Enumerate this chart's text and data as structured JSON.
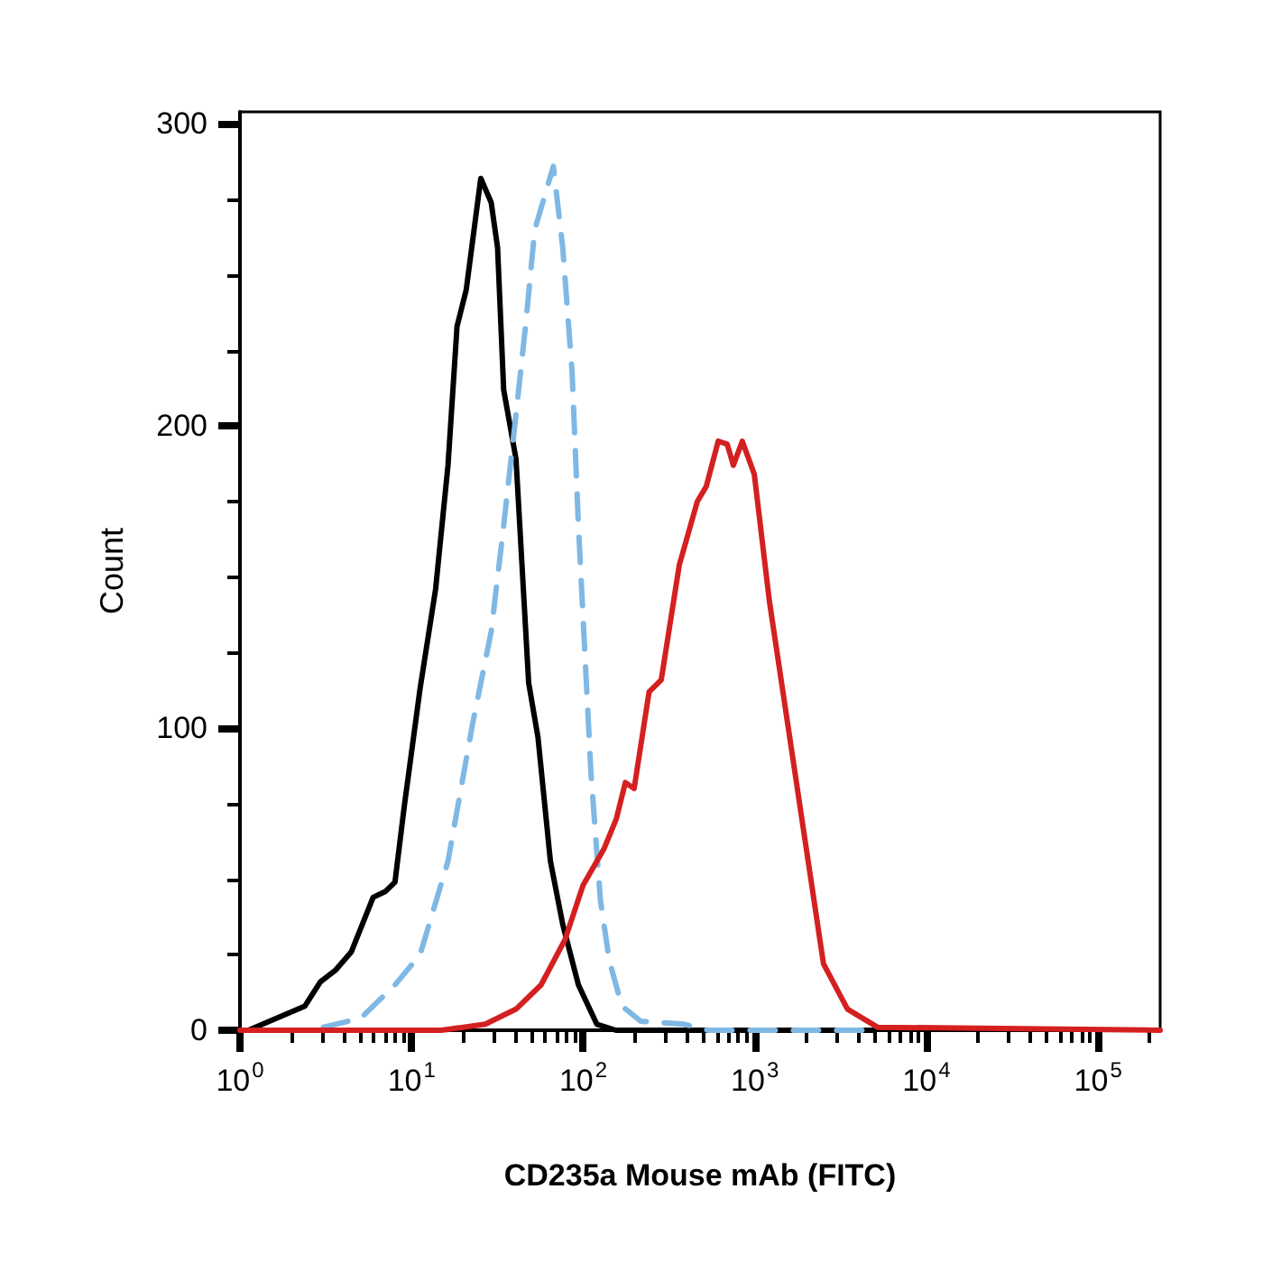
{
  "chart_data": {
    "type": "line",
    "xlabel": "CD235a Mouse mAb (FITC)",
    "ylabel": "Count",
    "log": "x",
    "marker": "none",
    "xlim": [
      1,
      230000
    ],
    "ylim": [
      0,
      304
    ],
    "xticks": [
      {
        "value": 1,
        "label": "10$^{0}$"
      },
      {
        "value": 2,
        "label": null
      },
      {
        "value": 3,
        "label": null
      },
      {
        "value": 4,
        "label": null
      },
      {
        "value": 5,
        "label": null
      },
      {
        "value": 6,
        "label": null
      },
      {
        "value": 7,
        "label": null
      },
      {
        "value": 8,
        "label": null
      },
      {
        "value": 9,
        "label": null
      },
      {
        "value": 10,
        "label": "10$^{1}$"
      },
      {
        "value": 20,
        "label": null
      },
      {
        "value": 30,
        "label": null
      },
      {
        "value": 40,
        "label": null
      },
      {
        "value": 50,
        "label": null
      },
      {
        "value": 60,
        "label": null
      },
      {
        "value": 70,
        "label": null
      },
      {
        "value": 80,
        "label": null
      },
      {
        "value": 90,
        "label": null
      },
      {
        "value": 100,
        "label": "10$^{2}$"
      },
      {
        "value": 200,
        "label": null
      },
      {
        "value": 300,
        "label": null
      },
      {
        "value": 400,
        "label": null
      },
      {
        "value": 500,
        "label": null
      },
      {
        "value": 600,
        "label": null
      },
      {
        "value": 700,
        "label": null
      },
      {
        "value": 800,
        "label": null
      },
      {
        "value": 900,
        "label": null
      },
      {
        "value": 1000,
        "label": "10$^{3}$"
      },
      {
        "value": 2000,
        "label": null
      },
      {
        "value": 3000,
        "label": null
      },
      {
        "value": 4000,
        "label": null
      },
      {
        "value": 5000,
        "label": null
      },
      {
        "value": 6000,
        "label": null
      },
      {
        "value": 7000,
        "label": null
      },
      {
        "value": 8000,
        "label": null
      },
      {
        "value": 9000,
        "label": null
      },
      {
        "value": 10000,
        "label": "10$^{4}$"
      },
      {
        "value": 20000,
        "label": null
      },
      {
        "value": 30000,
        "label": null
      },
      {
        "value": 40000,
        "label": null
      },
      {
        "value": 50000,
        "label": null
      },
      {
        "value": 60000,
        "label": null
      },
      {
        "value": 70000,
        "label": null
      },
      {
        "value": 80000,
        "label": null
      },
      {
        "value": 90000,
        "label": null
      },
      {
        "value": 100000,
        "label": "10$^{5}$"
      },
      {
        "value": 200000,
        "label": null
      }
    ],
    "yticks": [
      0,
      {
        "value": 25,
        "label": null
      },
      {
        "value": 50,
        "label": null
      },
      {
        "value": 75,
        "label": null
      },
      100,
      {
        "value": 125,
        "label": null
      },
      {
        "value": 150,
        "label": null
      },
      {
        "value": 175,
        "label": null
      },
      200,
      {
        "value": 225,
        "label": null
      },
      {
        "value": 250,
        "label": null
      },
      {
        "value": 275,
        "label": null
      },
      300
    ],
    "series": [
      {
        "color": "#000000",
        "line_style": "solid",
        "x": [
          1.12,
          2.39,
          2.94,
          3.62,
          4.46,
          5.97,
          7.06,
          8.0,
          9.06,
          11.2,
          13.8,
          16.3,
          18.4,
          20.8,
          25.3,
          29.1,
          31.7,
          34.4,
          40.6,
          48.1,
          54.5,
          64.4,
          76.0,
          93.8,
          120,
          155,
          5000
        ],
        "values": [
          0,
          8,
          16,
          20,
          26,
          44,
          46,
          49,
          74,
          113,
          146,
          187,
          233,
          245,
          282,
          274,
          259,
          212,
          189,
          115,
          97,
          56,
          35,
          15,
          2,
          0,
          0
        ]
      },
      {
        "color": "#7fb8e4",
        "line_style": "dashed",
        "x": [
          3.06,
          5.06,
          8.0,
          11.2,
          16.3,
          22.6,
          29.1,
          34.4,
          40.6,
          46.1,
          52.2,
          67.0,
          76.0,
          86.1,
          93.8,
          102,
          111,
          126,
          142,
          168,
          216,
          386,
          538,
          5100
        ],
        "values": [
          1,
          4,
          15,
          25,
          56,
          101,
          132,
          167,
          204,
          233,
          265,
          286,
          259,
          218,
          167,
          126,
          85,
          43,
          23,
          8,
          3,
          2,
          0,
          0
        ]
      },
      {
        "color": "#d42020",
        "line_style": "solid",
        "x": [
          1,
          14.9,
          26.9,
          40.6,
          56.8,
          78.3,
          99.8,
          132,
          156,
          176,
          198,
          242,
          285,
          363,
          462,
          521,
          612,
          690,
          750,
          845,
          993,
          1216,
          1549,
          1972,
          2512,
          3467,
          5188,
          230000
        ],
        "values": [
          0,
          0,
          2,
          7,
          15,
          30,
          48,
          60,
          70,
          82,
          80,
          112,
          116,
          154,
          175,
          180,
          195,
          194,
          187,
          195,
          184,
          142,
          102,
          62,
          22,
          7,
          1,
          0
        ]
      }
    ]
  }
}
